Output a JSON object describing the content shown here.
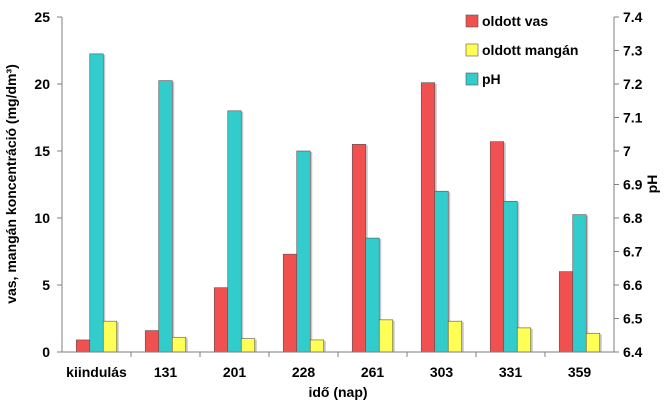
{
  "chart_data": {
    "type": "bar",
    "categories": [
      "kiindulás",
      "131",
      "201",
      "228",
      "261",
      "303",
      "331",
      "359"
    ],
    "xlabel": "idő (nap)",
    "ylabel_left": "vas, mangán koncentráció (mg/dm³)",
    "ylabel_right": "pH",
    "ylim_left": [
      0,
      25
    ],
    "yticks_left": [
      "0",
      "5",
      "10",
      "15",
      "20",
      "25"
    ],
    "ylim_right": [
      6.4,
      7.4
    ],
    "yticks_right": [
      "6.4",
      "6.5",
      "6.6",
      "6.7",
      "6.8",
      "6.9",
      "7",
      "7.1",
      "7.2",
      "7.3",
      "7.4"
    ],
    "grid": false,
    "legend_position": "top-right",
    "series": [
      {
        "name": "oldott vas",
        "axis": "left",
        "color": "#f05050",
        "values": [
          0.9,
          1.6,
          4.8,
          7.3,
          15.5,
          20.1,
          15.7,
          6.0
        ]
      },
      {
        "name": "oldott mangán",
        "axis": "left",
        "color": "#ffff55",
        "values": [
          2.3,
          1.1,
          1.0,
          0.9,
          2.4,
          2.3,
          1.8,
          1.4
        ]
      },
      {
        "name": "pH",
        "axis": "right",
        "color": "#33cccc",
        "values": [
          7.29,
          7.21,
          7.12,
          7.0,
          6.74,
          6.88,
          6.85,
          6.81
        ]
      }
    ]
  }
}
